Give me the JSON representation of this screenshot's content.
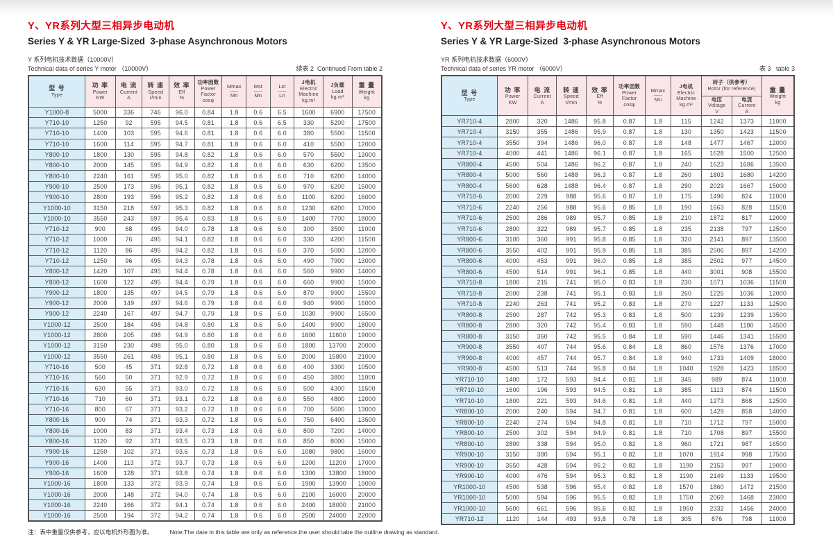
{
  "page": {
    "note_zh": "注：表中重量仅供参考，应以电机外形图为准。",
    "note_en": "Note:The date in this table are only as reference,the user should tabe the outline drawing as standard."
  },
  "left": {
    "title_zh": "Y、YR系列大型三相异步电动机",
    "title_en": "Series Y & YR Large-Sized  3-phase Asynchronous Motors",
    "subtitle_zh": "Y 系列电机技术数据（10000V）",
    "subtitle_en": "Technical data of series Y motor （10000V）",
    "table_ref": "续表 2  Continued From table 2",
    "head_rows": [
      [
        {
          "lines": [
            "型 号",
            "Type"
          ],
          "type": true
        },
        {
          "lines": [
            "功 率",
            "Power",
            "KW"
          ]
        },
        {
          "lines": [
            "电 流",
            "Current",
            "A"
          ]
        },
        {
          "lines": [
            "转 速",
            "Speed",
            "r/min"
          ]
        },
        {
          "lines": [
            "效 率",
            "Eff",
            "%"
          ]
        },
        {
          "lines": [
            "功率因数",
            "Power Factor",
            "cosφ"
          ],
          "small": true
        },
        {
          "lines": [
            "Mmax",
            "-----",
            "Mn"
          ],
          "frac": true
        },
        {
          "lines": [
            "Mst",
            "-----",
            "Mn"
          ],
          "frac": true
        },
        {
          "lines": [
            "Lst",
            "-----",
            "Ln"
          ],
          "frac": true
        },
        {
          "lines": [
            "J电机",
            "Electric",
            "Machine",
            "kg.m²"
          ],
          "small": true
        },
        {
          "lines": [
            "J负载",
            "Load",
            "kg.m²"
          ],
          "small": true
        },
        {
          "lines": [
            "重 量",
            "Weight",
            "kg"
          ]
        }
      ]
    ],
    "rows": [
      [
        "Y1000-8",
        "5000",
        "336",
        "746",
        "96.0",
        "0.84",
        "1.8",
        "0.6",
        "6.5",
        "1600",
        "6900",
        "17500"
      ],
      [
        "Y710-10",
        "1250",
        "92",
        "595",
        "94.5",
        "0.81",
        "1.8",
        "0.6",
        "6.5",
        "330",
        "5200",
        "17500"
      ],
      [
        "Y710-10",
        "1400",
        "103",
        "595",
        "94.6",
        "0.81",
        "1.8",
        "0.6",
        "6.0",
        "380",
        "5500",
        "11500"
      ],
      [
        "Y710-10",
        "1600",
        "114",
        "595",
        "94.7",
        "0.81",
        "1.8",
        "0.6",
        "6.0",
        "410",
        "5500",
        "12000"
      ],
      [
        "Y800-10",
        "1800",
        "130",
        "595",
        "94.8",
        "0.82",
        "1.8",
        "0.6",
        "6.0",
        "570",
        "5500",
        "13000"
      ],
      [
        "Y800-10",
        "2000",
        "145",
        "595",
        "94.9",
        "0.82",
        "1.8",
        "0.6",
        "6.0",
        "630",
        "6200",
        "13500"
      ],
      [
        "Y800-10",
        "2240",
        "161",
        "595",
        "95.0",
        "0.82",
        "1.8",
        "0.6",
        "6.0",
        "710",
        "6200",
        "14000"
      ],
      [
        "Y900-10",
        "2500",
        "173",
        "596",
        "95.1",
        "0.82",
        "1.8",
        "0.6",
        "6.0",
        "970",
        "6200",
        "15000"
      ],
      [
        "Y900-10",
        "2800",
        "193",
        "596",
        "95.2",
        "0.82",
        "1.8",
        "0.6",
        "6.0",
        "1100",
        "6200",
        "16000"
      ],
      [
        "Y1000-10",
        "3150",
        "218",
        "597",
        "95.3",
        "0.82",
        "1.8",
        "0.6",
        "6.0",
        "1230",
        "6200",
        "17000"
      ],
      [
        "Y1000-10",
        "3550",
        "243",
        "597",
        "95.4",
        "0.83",
        "1.8",
        "0.6",
        "6.0",
        "1400",
        "7700",
        "18000"
      ],
      [
        "Y710-12",
        "900",
        "68",
        "495",
        "94.0",
        "0.78",
        "1.8",
        "0.6",
        "6.0",
        "300",
        "3500",
        "11000"
      ],
      [
        "Y710-12",
        "1000",
        "76",
        "495",
        "94.1",
        "0.82",
        "1.8",
        "0.6",
        "6.0",
        "330",
        "4200",
        "11500"
      ],
      [
        "Y710-12",
        "1120",
        "86",
        "495",
        "94.2",
        "0.82",
        "1.8",
        "0.6",
        "6.0",
        "370",
        "5000",
        "12000"
      ],
      [
        "Y710-12",
        "1250",
        "96",
        "495",
        "94.3",
        "0.78",
        "1.8",
        "0.6",
        "6.0",
        "490",
        "7900",
        "13000"
      ],
      [
        "Y800-12",
        "1420",
        "107",
        "495",
        "94.4",
        "0.78",
        "1.8",
        "0.6",
        "6.0",
        "560",
        "9900",
        "14000"
      ],
      [
        "Y800-12",
        "1600",
        "122",
        "495",
        "94.4",
        "0.79",
        "1.8",
        "0.6",
        "6.0",
        "660",
        "9900",
        "15000"
      ],
      [
        "Y900-12",
        "1800",
        "135",
        "497",
        "94.5",
        "0.79",
        "1.8",
        "0.6",
        "6.0",
        "870",
        "9900",
        "15500"
      ],
      [
        "Y900-12",
        "2000",
        "149",
        "497",
        "94.6",
        "0.79",
        "1.8",
        "0.6",
        "6.0",
        "940",
        "9900",
        "16000"
      ],
      [
        "Y900-12",
        "2240",
        "167",
        "497",
        "94.7",
        "0.79",
        "1.8",
        "0.6",
        "6.0",
        "1030",
        "9900",
        "16500"
      ],
      [
        "Y1000-12",
        "2500",
        "184",
        "498",
        "94.8",
        "0.80",
        "1.8",
        "0.6",
        "6.0",
        "1400",
        "9900",
        "18000"
      ],
      [
        "Y1000-12",
        "2800",
        "205",
        "498",
        "94.9",
        "0.80",
        "1.8",
        "0.6",
        "6.0",
        "1600",
        "11600",
        "19000"
      ],
      [
        "Y1000-12",
        "3150",
        "230",
        "498",
        "95.0",
        "0.80",
        "1.8",
        "0.6",
        "6.0",
        "1800",
        "13700",
        "20000"
      ],
      [
        "Y1000-12",
        "3550",
        "261",
        "498",
        "95.1",
        "0.80",
        "1.8",
        "0.6",
        "6.0",
        "2000",
        "15800",
        "21000"
      ],
      [
        "Y710-16",
        "500",
        "45",
        "371",
        "92.8",
        "0.72",
        "1.8",
        "0.6",
        "6.0",
        "400",
        "3300",
        "10500"
      ],
      [
        "Y710-16",
        "560",
        "50",
        "371",
        "92.9",
        "0.72",
        "1.8",
        "0.6",
        "6.0",
        "450",
        "3800",
        "11000"
      ],
      [
        "Y710-16",
        "630",
        "55",
        "371",
        "93.0",
        "0.72",
        "1.8",
        "0.6",
        "6.0",
        "500",
        "4300",
        "11500"
      ],
      [
        "Y710-16",
        "710",
        "60",
        "371",
        "93.1",
        "0.72",
        "1.8",
        "0.6",
        "6.0",
        "550",
        "4800",
        "12000"
      ],
      [
        "Y710-16",
        "800",
        "67",
        "371",
        "93.2",
        "0.72",
        "1.8",
        "0.6",
        "6.0",
        "700",
        "5600",
        "13000"
      ],
      [
        "Y800-16",
        "900",
        "74",
        "371",
        "93.3",
        "0.72",
        "1.8",
        "0.6",
        "6.0",
        "750",
        "6400",
        "13500"
      ],
      [
        "Y800-16",
        "1000",
        "83",
        "371",
        "93.4",
        "0.73",
        "1.8",
        "0.6",
        "6.0",
        "800",
        "7200",
        "14000"
      ],
      [
        "Y800-16",
        "1120",
        "92",
        "371",
        "93.5",
        "0.73",
        "1.8",
        "0.6",
        "6.0",
        "850",
        "8000",
        "15000"
      ],
      [
        "Y900-16",
        "1250",
        "102",
        "371",
        "93.6",
        "0.73",
        "1.8",
        "0.6",
        "6.0",
        "1080",
        "9800",
        "16000"
      ],
      [
        "Y900-16",
        "1400",
        "113",
        "372",
        "93.7",
        "0.73",
        "1.8",
        "0.6",
        "6.0",
        "1200",
        "11200",
        "17000"
      ],
      [
        "Y900-16",
        "1600",
        "128",
        "371",
        "93.8",
        "0.74",
        "1.8",
        "0.6",
        "6.0",
        "1300",
        "13800",
        "18000"
      ],
      [
        "Y1000-16",
        "1800",
        "133",
        "372",
        "93.9",
        "0.74",
        "1.8",
        "0.6",
        "6.0",
        "1900",
        "13900",
        "19000"
      ],
      [
        "Y1000-16",
        "2000",
        "148",
        "372",
        "94.0",
        "0.74",
        "1.8",
        "0.6",
        "6.0",
        "2100",
        "16000",
        "20000"
      ],
      [
        "Y1000-16",
        "2240",
        "166",
        "372",
        "94.1",
        "0.74",
        "1.8",
        "0.6",
        "6.0",
        "2400",
        "18000",
        "21000"
      ],
      [
        "Y1000-16",
        "2500",
        "194",
        "372",
        "94.2",
        "0.74",
        "1.8",
        "0.6",
        "6.0",
        "2500",
        "24000",
        "22000"
      ]
    ]
  },
  "right": {
    "title_zh": "Y、YR系列大型三相异步电动机",
    "title_en": "Series Y & YR Large-Sized  3-phase Asynchronous Motors",
    "subtitle_zh": "YR 系列电机技术数据（6000V）",
    "subtitle_en": "Technical data of series YR motor （6000V）",
    "table_ref": "表 3   table 3",
    "head_rows": [
      [
        {
          "lines": [
            "型 号",
            "Type"
          ],
          "type": true,
          "rowspan": 2
        },
        {
          "lines": [
            "功 率",
            "Power",
            "KW"
          ],
          "rowspan": 2
        },
        {
          "lines": [
            "电 流",
            "Current",
            "A"
          ],
          "rowspan": 2
        },
        {
          "lines": [
            "转 速",
            "Speed",
            "r/min"
          ],
          "rowspan": 2
        },
        {
          "lines": [
            "效 率",
            "Eff",
            "%"
          ],
          "rowspan": 2
        },
        {
          "lines": [
            "功率因数",
            "Power Factor",
            "cosφ"
          ],
          "small": true,
          "rowspan": 2
        },
        {
          "lines": [
            "Mmax",
            "-----",
            "Mn"
          ],
          "frac": true,
          "rowspan": 2
        },
        {
          "lines": [
            "J电机",
            "Electric",
            "Machine",
            "kg.m²"
          ],
          "small": true,
          "rowspan": 2
        },
        {
          "lines": [
            "转子（供参考）",
            "Rotor (for reference)"
          ],
          "small": true,
          "colspan": 2
        },
        {
          "lines": [
            "重 量",
            "Weight",
            "kg"
          ],
          "rowspan": 2
        }
      ],
      [
        {
          "lines": [
            "电压",
            "Voltage",
            "V"
          ],
          "small": true
        },
        {
          "lines": [
            "电流",
            "Current",
            "A"
          ],
          "small": true
        }
      ]
    ],
    "rows": [
      [
        "YR710-4",
        "2800",
        "320",
        "1486",
        "95.8",
        "0.87",
        "1.8",
        "115",
        "1242",
        "1373",
        "11000"
      ],
      [
        "YR710-4",
        "3150",
        "355",
        "1486",
        "95.9",
        "0.87",
        "1.8",
        "130",
        "1350",
        "1423",
        "11500"
      ],
      [
        "YR710-4",
        "3550",
        "394",
        "1486",
        "96.0",
        "0.87",
        "1.8",
        "148",
        "1477",
        "1467",
        "12000"
      ],
      [
        "YR710-4",
        "4000",
        "441",
        "1486",
        "96.1",
        "0.87",
        "1.8",
        "165",
        "1628",
        "1500",
        "12500"
      ],
      [
        "YR800-4",
        "4500",
        "504",
        "1486",
        "96.2",
        "0.87",
        "1.8",
        "240",
        "1623",
        "1686",
        "13500"
      ],
      [
        "YR800-4",
        "5000",
        "560",
        "1488",
        "96.3",
        "0.87",
        "1.8",
        "260",
        "1803",
        "1680",
        "14200"
      ],
      [
        "YR800-4",
        "5600",
        "628",
        "1488",
        "96.4",
        "0.87",
        "1.8",
        "290",
        "2029",
        "1667",
        "15000"
      ],
      [
        "YR710-6",
        "2000",
        "229",
        "988",
        "95.6",
        "0.87",
        "1.8",
        "175",
        "1496",
        "824",
        "11000"
      ],
      [
        "YR710-6",
        "2240",
        "256",
        "988",
        "95.6",
        "0.85",
        "1.8",
        "190",
        "1663",
        "828",
        "11500"
      ],
      [
        "YR710-6",
        "2500",
        "286",
        "989",
        "95.7",
        "0.85",
        "1.8",
        "210",
        "1872",
        "817",
        "12000"
      ],
      [
        "YR710-6",
        "2800",
        "322",
        "989",
        "95.7",
        "0.85",
        "1.8",
        "235",
        "2138",
        "797",
        "12500"
      ],
      [
        "YR800-6",
        "3100",
        "360",
        "991",
        "95.8",
        "0.85",
        "1.8",
        "320",
        "2141",
        "897",
        "13500"
      ],
      [
        "YR800-6",
        "3550",
        "402",
        "991",
        "95.9",
        "0.85",
        "1.8",
        "385",
        "2506",
        "897",
        "14200"
      ],
      [
        "YR800-6",
        "4000",
        "453",
        "991",
        "96.0",
        "0.85",
        "1.8",
        "385",
        "2502",
        "977",
        "14500"
      ],
      [
        "YR800-6",
        "4500",
        "514",
        "991",
        "96.1",
        "0.85",
        "1.8",
        "440",
        "3001",
        "908",
        "15500"
      ],
      [
        "YR710-8",
        "1800",
        "215",
        "741",
        "95.0",
        "0.83",
        "1.8",
        "230",
        "1071",
        "1036",
        "11500"
      ],
      [
        "YR710-8",
        "2000",
        "238",
        "741",
        "95.1",
        "0.83",
        "1.8",
        "260",
        "1225",
        "1036",
        "12000"
      ],
      [
        "YR710-8",
        "2240",
        "263",
        "741",
        "95.2",
        "0.83",
        "1.8",
        "270",
        "1227",
        "1133",
        "12500"
      ],
      [
        "YR800-8",
        "2500",
        "287",
        "742",
        "95.3",
        "0.83",
        "1.8",
        "500",
        "1239",
        "1239",
        "13500"
      ],
      [
        "YR800-8",
        "2800",
        "320",
        "742",
        "95.4",
        "0.83",
        "1.8",
        "590",
        "1448",
        "1180",
        "14500"
      ],
      [
        "YR800-8",
        "3150",
        "360",
        "742",
        "95.5",
        "0.84",
        "1.8",
        "590",
        "1446",
        "1341",
        "15500"
      ],
      [
        "YR900-8",
        "3550",
        "407",
        "744",
        "95.6",
        "0.84",
        "1.8",
        "860",
        "1576",
        "1376",
        "17000"
      ],
      [
        "YR900-8",
        "4000",
        "457",
        "744",
        "95.7",
        "0.84",
        "1.8",
        "940",
        "1733",
        "1409",
        "18000"
      ],
      [
        "YR900-8",
        "4500",
        "513",
        "744",
        "95.8",
        "0.84",
        "1.8",
        "1040",
        "1928",
        "1423",
        "18500"
      ],
      [
        "YR710-10",
        "1400",
        "172",
        "593",
        "94.4",
        "0.81",
        "1.8",
        "345",
        "989",
        "874",
        "11000"
      ],
      [
        "YR710-10",
        "1600",
        "196",
        "593",
        "94.5",
        "0.81",
        "1.8",
        "385",
        "1113",
        "874",
        "11500"
      ],
      [
        "YR710-10",
        "1800",
        "221",
        "593",
        "94.6",
        "0.81",
        "1.8",
        "440",
        "1273",
        "868",
        "12500"
      ],
      [
        "YR800-10",
        "2000",
        "240",
        "594",
        "94.7",
        "0.81",
        "1.8",
        "600",
        "1429",
        "858",
        "14000"
      ],
      [
        "YR800-10",
        "2240",
        "274",
        "594",
        "94.8",
        "0.81",
        "1.8",
        "710",
        "1712",
        "797",
        "15000"
      ],
      [
        "YR800-10",
        "2500",
        "302",
        "594",
        "94.9",
        "0.81",
        "1.8",
        "710",
        "1708",
        "897",
        "15500"
      ],
      [
        "YR800-10",
        "2800",
        "338",
        "594",
        "95.0",
        "0.82",
        "1.8",
        "960",
        "1721",
        "987",
        "16500"
      ],
      [
        "YR900-10",
        "3150",
        "380",
        "594",
        "95.1",
        "0.82",
        "1.8",
        "1070",
        "1914",
        "998",
        "17500"
      ],
      [
        "YR900-10",
        "3550",
        "428",
        "594",
        "95.2",
        "0.82",
        "1.8",
        "1190",
        "2153",
        "997",
        "19000"
      ],
      [
        "YR900-10",
        "4000",
        "476",
        "594",
        "95.3",
        "0.82",
        "1.8",
        "1190",
        "2149",
        "1133",
        "19500"
      ],
      [
        "YR1000-10",
        "4500",
        "538",
        "596",
        "95.4",
        "0.82",
        "1.8",
        "1570",
        "1860",
        "1472",
        "21500"
      ],
      [
        "YR1000-10",
        "5000",
        "594",
        "596",
        "95.5",
        "0.82",
        "1.8",
        "1750",
        "2069",
        "1468",
        "23000"
      ],
      [
        "YR1000-10",
        "5600",
        "661",
        "596",
        "95.6",
        "0.82",
        "1.8",
        "1950",
        "2332",
        "1456",
        "24000"
      ],
      [
        "YR710-12",
        "1120",
        "144",
        "493",
        "93.8",
        "0.78",
        "1.8",
        "305",
        "876",
        "798",
        "11000"
      ]
    ]
  }
}
